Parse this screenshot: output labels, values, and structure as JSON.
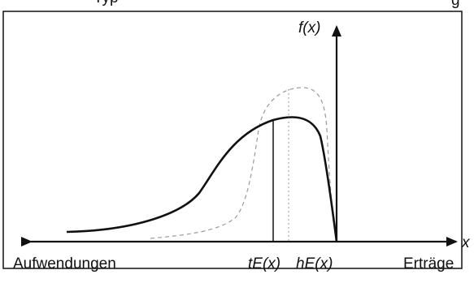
{
  "header_fragment": "Typ",
  "header_fragment_right": "g",
  "labels": {
    "y_axis": "f(x)",
    "x_axis": "x",
    "left_end": "Aufwendungen",
    "right_end": "Erträge",
    "marker_t": "tE(x)",
    "marker_h": "hE(x)"
  },
  "colors": {
    "ink": "#111111",
    "dashed": "#9a9a9a",
    "background": "#ffffff"
  }
}
